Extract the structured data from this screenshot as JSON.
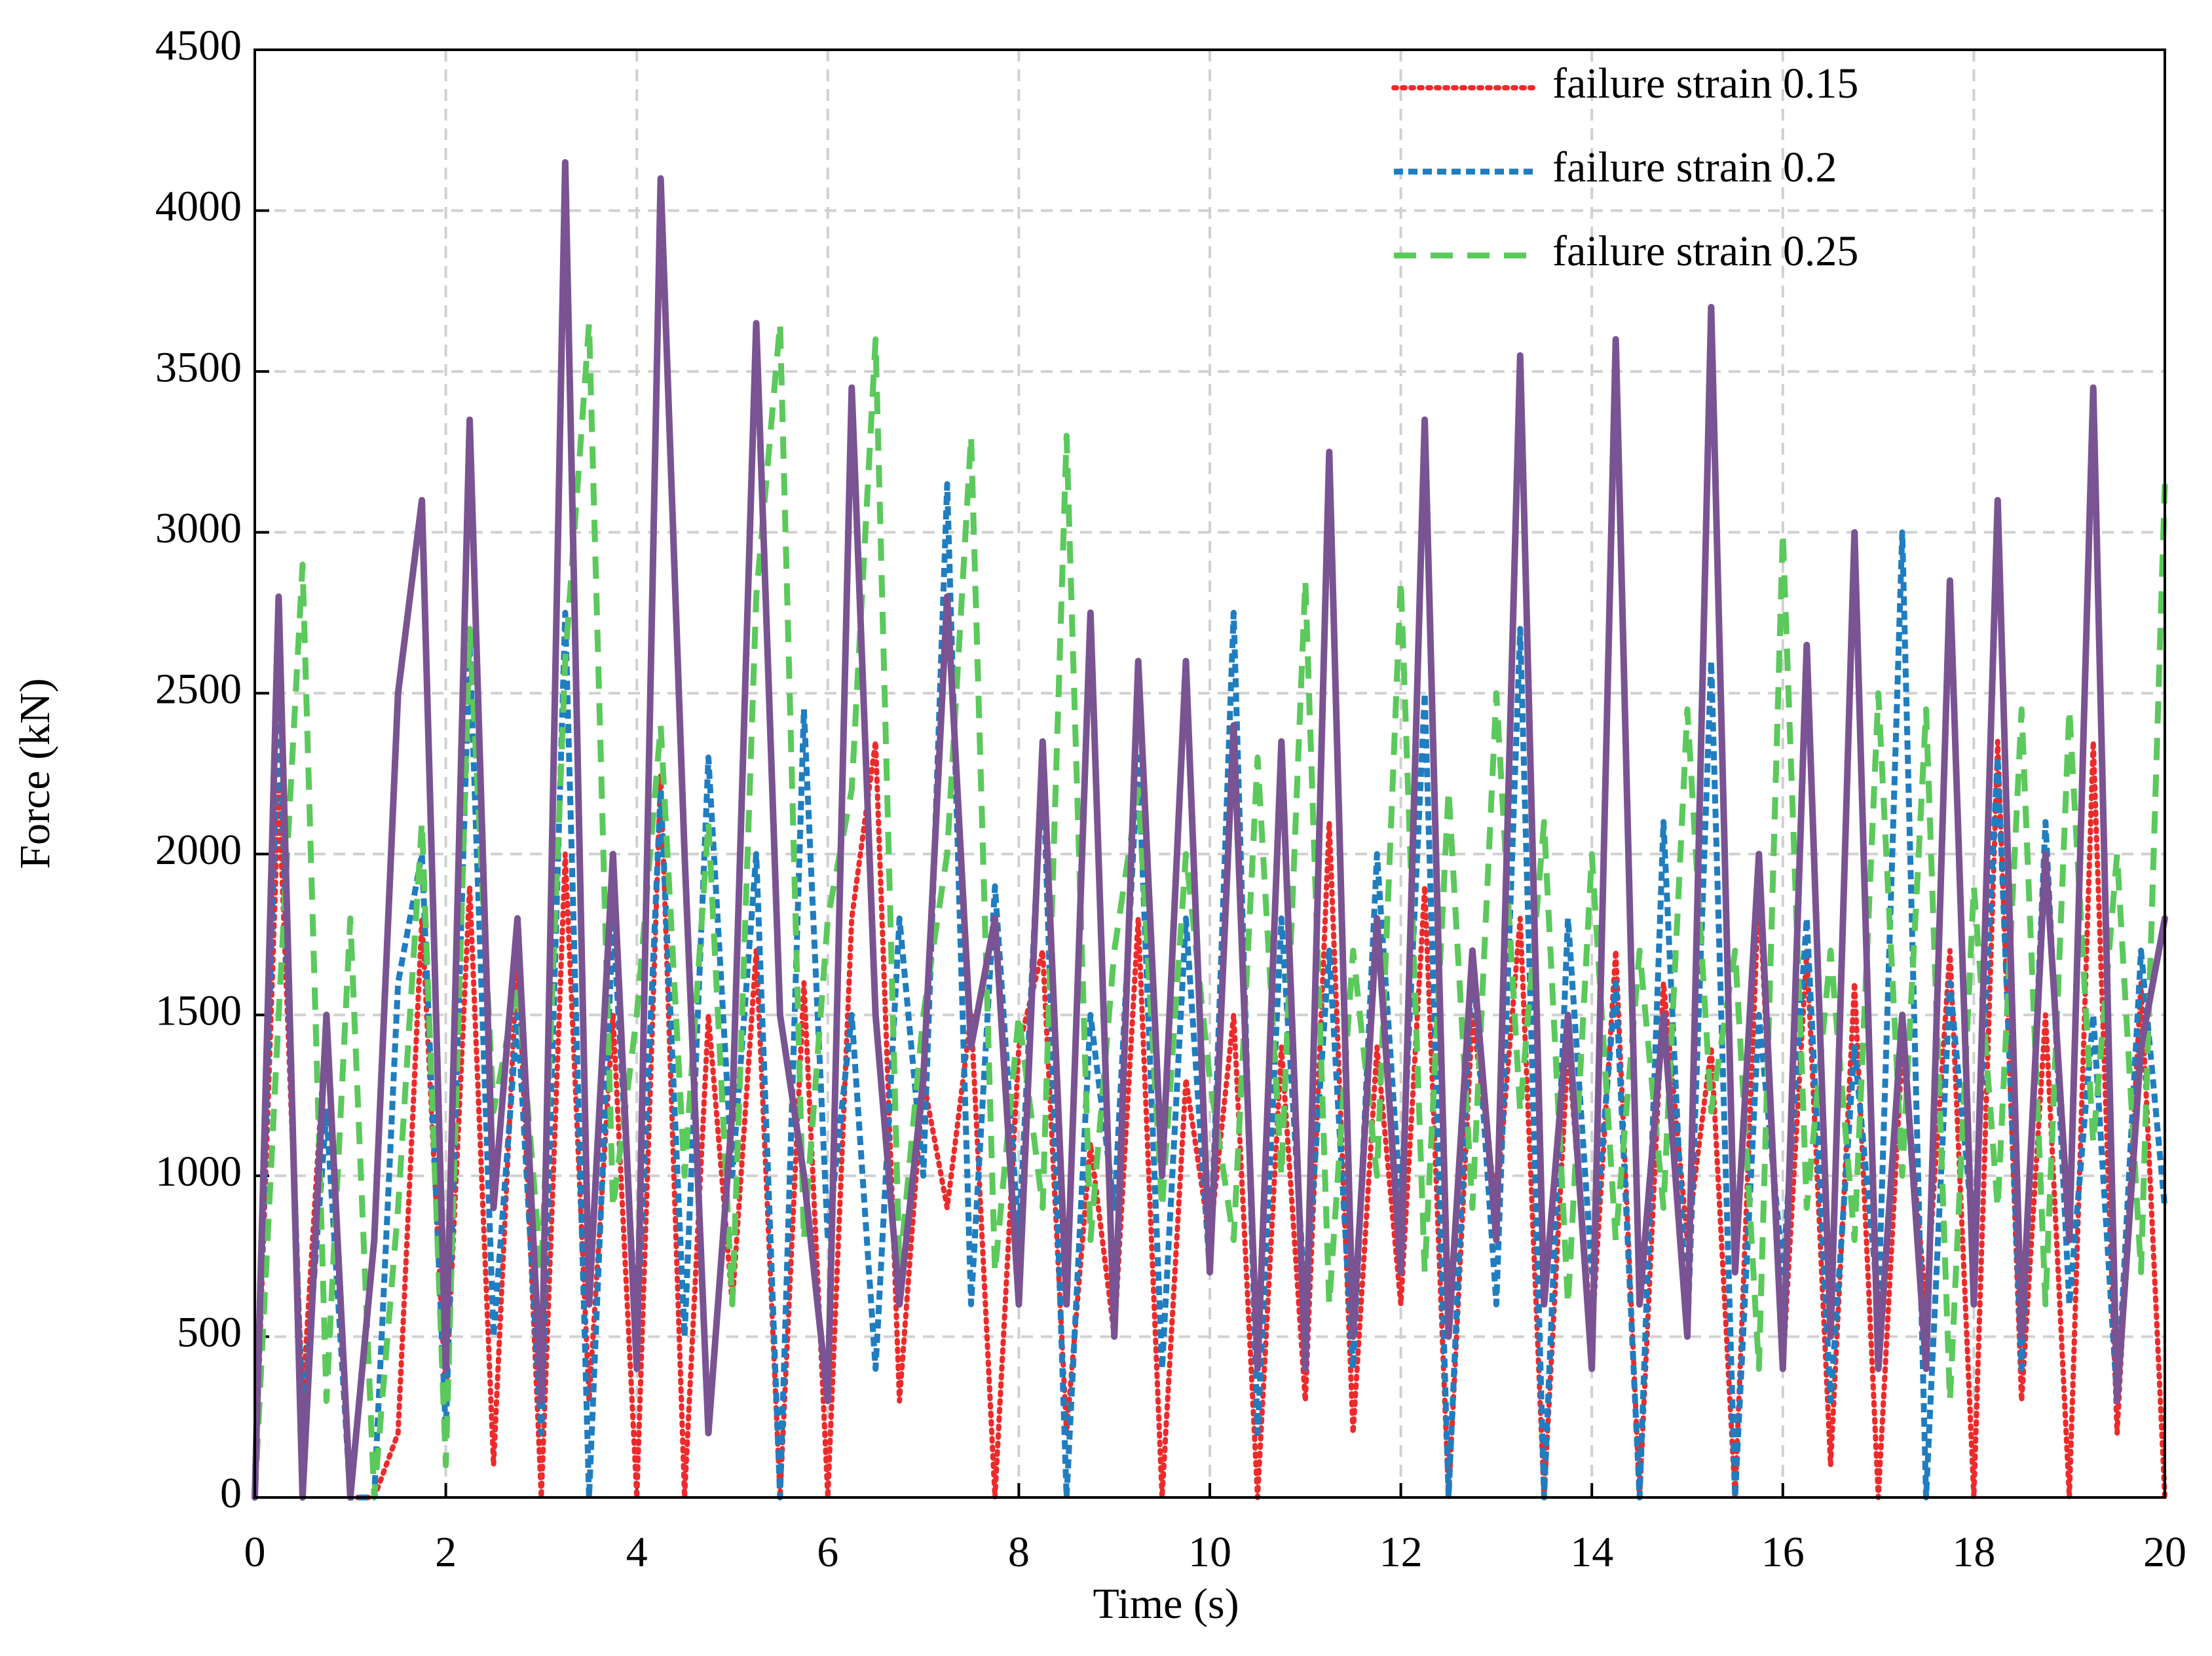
{
  "chart_data": {
    "type": "line",
    "xlabel": "Time (s)",
    "ylabel": "Force (kN)",
    "x": [
      0,
      0.25,
      0.5,
      0.75,
      1,
      1.25,
      1.5,
      1.75,
      2,
      2.25,
      2.5,
      2.75,
      3,
      3.25,
      3.5,
      3.75,
      4,
      4.25,
      4.5,
      4.75,
      5,
      5.25,
      5.5,
      5.75,
      6,
      6.25,
      6.5,
      6.75,
      7,
      7.25,
      7.5,
      7.75,
      8,
      8.25,
      8.5,
      8.75,
      9,
      9.25,
      9.5,
      9.75,
      10,
      10.25,
      10.5,
      10.75,
      11,
      11.25,
      11.5,
      11.75,
      12,
      12.25,
      12.5,
      12.75,
      13,
      13.25,
      13.5,
      13.75,
      14,
      14.25,
      14.5,
      14.75,
      15,
      15.25,
      15.5,
      15.75,
      16,
      16.25,
      16.5,
      16.75,
      17,
      17.25,
      17.5,
      17.75,
      18,
      18.25,
      18.5,
      18.75,
      19,
      19.25,
      19.5,
      19.75,
      20
    ],
    "series": [
      {
        "name": "failure strain 0.15",
        "color": "#ee2a2a",
        "style": "dotted",
        "values": [
          0,
          2200,
          300,
          1500,
          0,
          0,
          200,
          1800,
          300,
          1900,
          100,
          1700,
          0,
          2000,
          300,
          1500,
          0,
          2250,
          0,
          1500,
          600,
          1700,
          0,
          1600,
          0,
          1800,
          2350,
          300,
          1300,
          900,
          1500,
          0,
          1400,
          1700,
          200,
          1100,
          500,
          1800,
          0,
          1300,
          800,
          1500,
          0,
          1400,
          300,
          2100,
          200,
          1400,
          600,
          1900,
          0,
          1500,
          900,
          1800,
          0,
          1400,
          500,
          1700,
          0,
          1600,
          800,
          1400,
          0,
          1900,
          400,
          1700,
          100,
          1600,
          0,
          1400,
          600,
          1700,
          0,
          2350,
          300,
          1500,
          0,
          2350,
          200,
          1600,
          0
        ]
      },
      {
        "name": "failure strain 0.2",
        "color": "#1f7dc0",
        "style": "short-dash",
        "values": [
          0,
          2500,
          200,
          1200,
          0,
          0,
          1600,
          2000,
          200,
          2650,
          500,
          1500,
          200,
          2750,
          0,
          1800,
          500,
          2200,
          500,
          2300,
          1000,
          2000,
          0,
          2450,
          800,
          1500,
          400,
          1800,
          1000,
          3150,
          600,
          1900,
          800,
          2300,
          0,
          1500,
          900,
          2300,
          400,
          1800,
          700,
          2750,
          200,
          1800,
          600,
          1700,
          400,
          2000,
          900,
          2500,
          0,
          1700,
          600,
          2700,
          0,
          1800,
          700,
          1600,
          0,
          2100,
          500,
          2600,
          0,
          1500,
          700,
          1800,
          300,
          1400,
          600,
          3000,
          0,
          1600,
          800,
          2300,
          400,
          2100,
          600,
          1500,
          300,
          1700,
          900
        ]
      },
      {
        "name": "failure strain 0.25",
        "color": "#5bc95b",
        "style": "long-dash",
        "values": [
          0,
          1500,
          2900,
          300,
          1800,
          0,
          900,
          2100,
          100,
          2700,
          1200,
          1600,
          700,
          2600,
          3650,
          900,
          1500,
          2400,
          1000,
          2100,
          600,
          2800,
          3650,
          800,
          1800,
          2200,
          3600,
          700,
          1500,
          2000,
          3300,
          700,
          1500,
          900,
          3300,
          800,
          1700,
          2200,
          900,
          2000,
          1300,
          800,
          2300,
          1000,
          2850,
          600,
          1700,
          1000,
          2850,
          700,
          2200,
          900,
          2500,
          1200,
          2100,
          600,
          2000,
          800,
          1700,
          900,
          2450,
          1200,
          1700,
          400,
          3000,
          900,
          1700,
          800,
          2500,
          1000,
          2450,
          300,
          1900,
          900,
          2450,
          600,
          2450,
          1100,
          2000,
          700,
          3150
        ]
      },
      {
        "color": "#7a5392",
        "style": "solid",
        "values": [
          0,
          2800,
          0,
          1500,
          0,
          800,
          2500,
          3100,
          400,
          3350,
          900,
          1800,
          300,
          4150,
          600,
          2000,
          400,
          4100,
          2000,
          200,
          1200,
          3650,
          1500,
          1000,
          300,
          3450,
          1500,
          600,
          1300,
          2800,
          1400,
          1800,
          600,
          2350,
          600,
          2750,
          500,
          2600,
          1000,
          2600,
          700,
          2400,
          400,
          2350,
          400,
          3250,
          500,
          1800,
          700,
          3350,
          500,
          1700,
          800,
          3550,
          600,
          1500,
          400,
          3600,
          600,
          1500,
          500,
          3700,
          700,
          2000,
          400,
          2650,
          500,
          3000,
          400,
          1500,
          400,
          2850,
          600,
          3100,
          500,
          2000,
          800,
          3450,
          300,
          1400,
          1800
        ]
      }
    ],
    "xlim": [
      0,
      20
    ],
    "xticks": [
      0,
      2,
      4,
      6,
      8,
      10,
      12,
      14,
      16,
      18,
      20
    ],
    "ylim": [
      0,
      4500
    ],
    "yticks": [
      0,
      500,
      1000,
      1500,
      2000,
      2500,
      3000,
      3500,
      4000,
      4500
    ],
    "grid": true,
    "legend": "top-right"
  }
}
